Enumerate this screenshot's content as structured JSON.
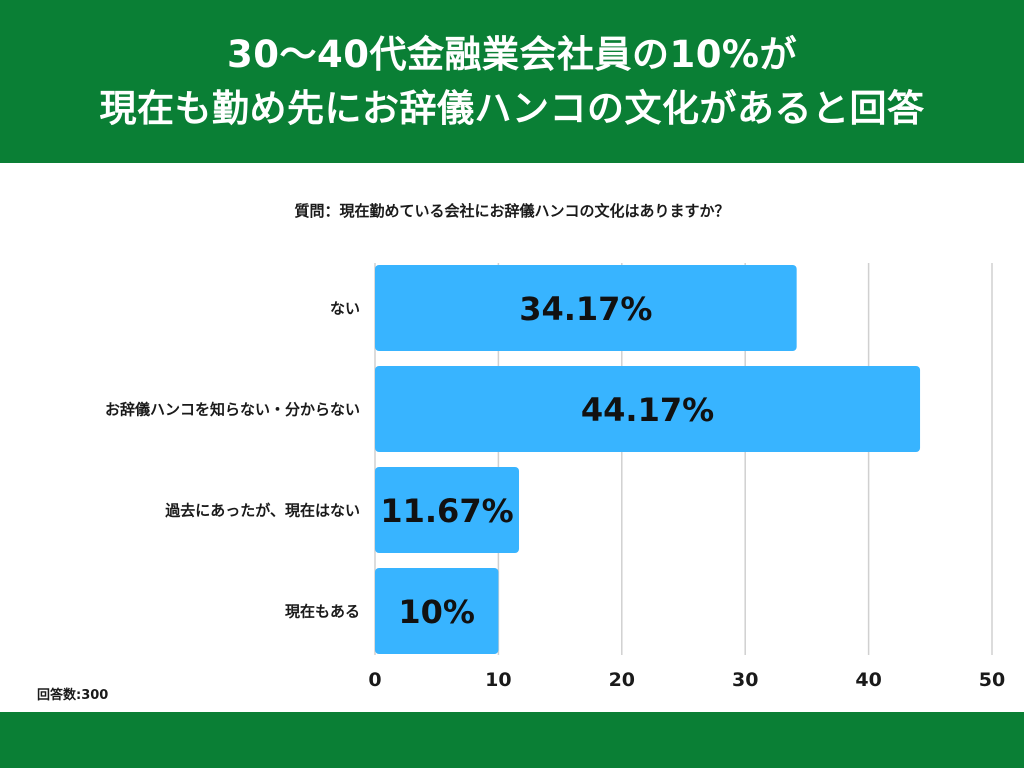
{
  "header": {
    "title_line1": "30〜40代金融業会社員の10%が",
    "title_line2": "現在も勤め先にお辞儀ハンコの文化があると回答"
  },
  "question": "質問：現在勤めている会社にお辞儀ハンコの文化はありますか？",
  "footnote": "回答数:300",
  "colors": {
    "header_bg": "#0a7f35",
    "bar": "#38b4ff",
    "grid": "#d0d0d0"
  },
  "chart_data": {
    "type": "bar",
    "orientation": "horizontal",
    "categories": [
      "ない",
      "お辞儀ハンコを知らない・分からない",
      "過去にあったが、現在はない",
      "現在もある"
    ],
    "values": [
      34.17,
      44.17,
      11.67,
      10
    ],
    "value_labels": [
      "34.17%",
      "44.17%",
      "11.67%",
      "10%"
    ],
    "xlim": [
      0,
      50
    ],
    "xticks": [
      0,
      10,
      20,
      30,
      40,
      50
    ],
    "grid": true,
    "title": "",
    "xlabel": "",
    "ylabel": ""
  }
}
